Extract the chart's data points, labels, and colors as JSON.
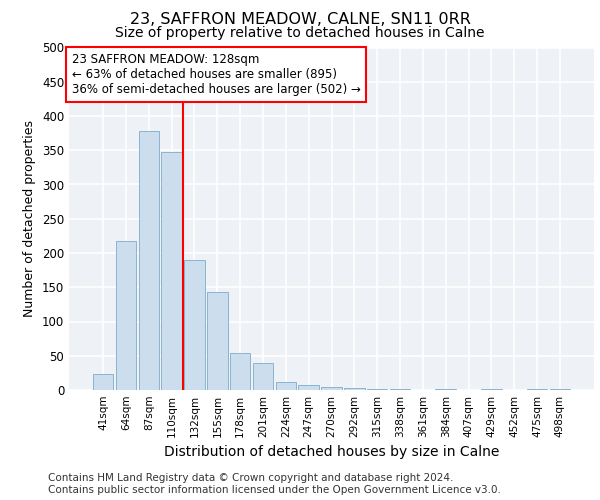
{
  "title1": "23, SAFFRON MEADOW, CALNE, SN11 0RR",
  "title2": "Size of property relative to detached houses in Calne",
  "xlabel": "Distribution of detached houses by size in Calne",
  "ylabel": "Number of detached properties",
  "categories": [
    "41sqm",
    "64sqm",
    "87sqm",
    "110sqm",
    "132sqm",
    "155sqm",
    "178sqm",
    "201sqm",
    "224sqm",
    "247sqm",
    "270sqm",
    "292sqm",
    "315sqm",
    "338sqm",
    "361sqm",
    "384sqm",
    "407sqm",
    "429sqm",
    "452sqm",
    "475sqm",
    "498sqm"
  ],
  "values": [
    23,
    218,
    378,
    348,
    190,
    143,
    54,
    39,
    11,
    8,
    5,
    3,
    2,
    1,
    0,
    2,
    0,
    1,
    0,
    2,
    1
  ],
  "bar_color": "#ccdded",
  "bar_edge_color": "#8ab4d0",
  "vline_x": 3.5,
  "annotation_text": "23 SAFFRON MEADOW: 128sqm\n← 63% of detached houses are smaller (895)\n36% of semi-detached houses are larger (502) →",
  "annotation_box_color": "white",
  "annotation_box_edge": "red",
  "vline_color": "red",
  "ylim": [
    0,
    500
  ],
  "yticks": [
    0,
    50,
    100,
    150,
    200,
    250,
    300,
    350,
    400,
    450,
    500
  ],
  "background_color": "#eef2f7",
  "grid_color": "white",
  "footer_text": "Contains HM Land Registry data © Crown copyright and database right 2024.\nContains public sector information licensed under the Open Government Licence v3.0.",
  "title1_fontsize": 11.5,
  "title2_fontsize": 10,
  "xlabel_fontsize": 10,
  "ylabel_fontsize": 9,
  "annot_fontsize": 8.5,
  "footer_fontsize": 7.5
}
